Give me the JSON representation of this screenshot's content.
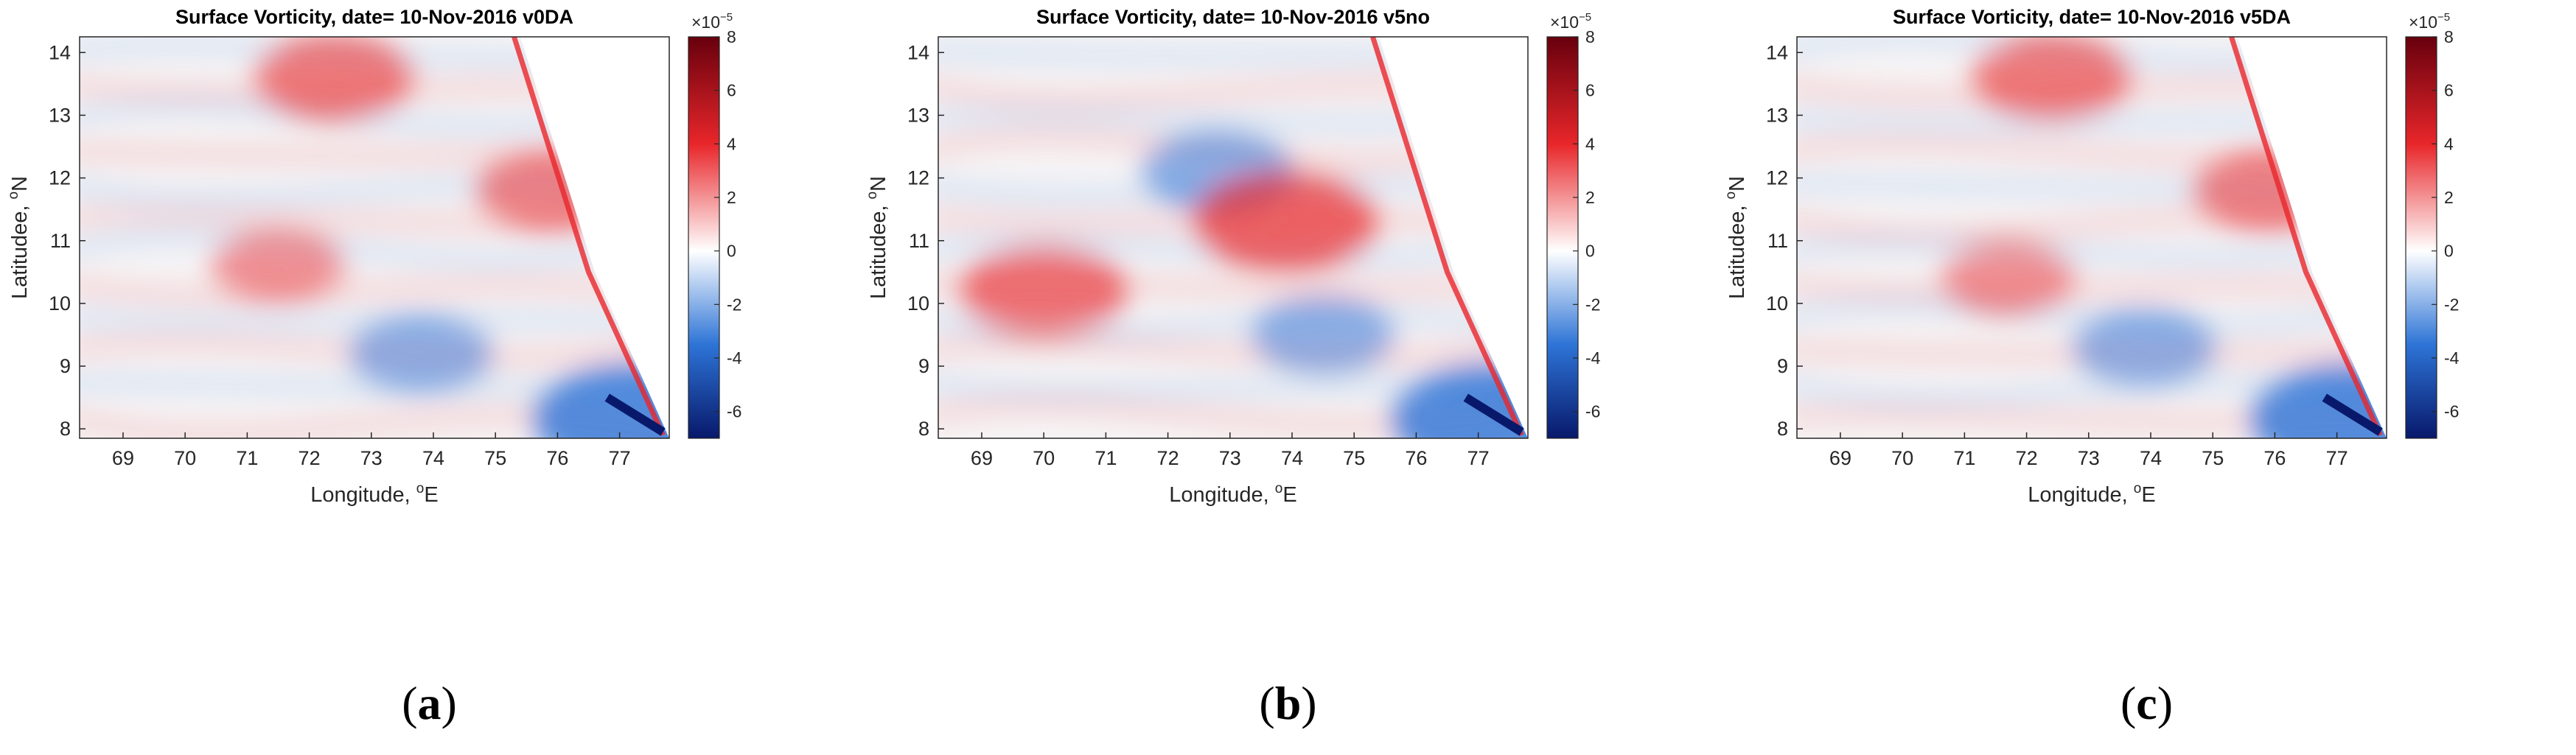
{
  "figure": {
    "panels": [
      {
        "label": "a",
        "title": "Surface Vorticity,  date= 10-Nov-2016  v0DA"
      },
      {
        "label": "b",
        "title": "Surface Vorticity,  date= 10-Nov-2016  v5no"
      },
      {
        "label": "c",
        "title": "Surface Vorticity,  date= 10-Nov-2016  v5DA"
      }
    ]
  },
  "colors": {
    "positive_max": "#67000d",
    "positive": "#e8262a",
    "zero": "#ffffff",
    "negative": "#2d74d6",
    "negative_max": "#08196b",
    "axis": "#262626"
  },
  "chart_data": [
    {
      "type": "heatmap",
      "title": "Surface Vorticity,  date= 10-Nov-2016  v0DA",
      "xlabel": "Longitude, oE",
      "ylabel": "Latitudee, oN",
      "xlim": [
        68.3,
        77.8
      ],
      "ylim": [
        7.85,
        14.25
      ],
      "xticks": [
        69,
        70,
        71,
        72,
        73,
        74,
        75,
        76,
        77
      ],
      "yticks": [
        8,
        9,
        10,
        11,
        12,
        13,
        14
      ],
      "colorbar": {
        "scale_label": "×10−5",
        "clim": [
          -7,
          8
        ],
        "ticks": [
          -6,
          -4,
          -2,
          0,
          2,
          4,
          6,
          8
        ]
      },
      "features": [
        {
          "kind": "positive",
          "value": 3.5,
          "lon": 72.4,
          "lat": 13.6
        },
        {
          "kind": "positive",
          "value": 2.0,
          "lon": 71.5,
          "lat": 10.6
        },
        {
          "kind": "negative",
          "value": -2.5,
          "lon": 73.8,
          "lat": 9.2
        },
        {
          "kind": "positive",
          "value": 3.0,
          "lon": 75.9,
          "lat": 11.8
        },
        {
          "kind": "negative",
          "value": -6.5,
          "lon": 77.3,
          "lat": 8.15
        }
      ]
    },
    {
      "type": "heatmap",
      "title": "Surface Vorticity,  date= 10-Nov-2016  v5no",
      "xlabel": "Longitude, oE",
      "ylabel": "Latitudee, oN",
      "xlim": [
        68.3,
        77.8
      ],
      "ylim": [
        7.85,
        14.25
      ],
      "xticks": [
        69,
        70,
        71,
        72,
        73,
        74,
        75,
        76,
        77
      ],
      "yticks": [
        8,
        9,
        10,
        11,
        12,
        13,
        14
      ],
      "colorbar": {
        "scale_label": "×10−5",
        "clim": [
          -7,
          8
        ],
        "ticks": [
          -6,
          -4,
          -2,
          0,
          2,
          4,
          6,
          8
        ]
      },
      "features": [
        {
          "kind": "positive",
          "value": 4.0,
          "lon": 70.0,
          "lat": 10.2
        },
        {
          "kind": "negative",
          "value": -3.0,
          "lon": 72.8,
          "lat": 12.1
        },
        {
          "kind": "positive",
          "value": 5.0,
          "lon": 73.9,
          "lat": 11.3
        },
        {
          "kind": "negative",
          "value": -2.5,
          "lon": 74.5,
          "lat": 9.5
        },
        {
          "kind": "negative",
          "value": -6.5,
          "lon": 77.3,
          "lat": 8.15
        }
      ]
    },
    {
      "type": "heatmap",
      "title": "Surface Vorticity,  date= 10-Nov-2016  v5DA",
      "xlabel": "Longitude, oE",
      "ylabel": "Latitudee, oN",
      "xlim": [
        68.3,
        77.8
      ],
      "ylim": [
        7.85,
        14.25
      ],
      "xticks": [
        69,
        70,
        71,
        72,
        73,
        74,
        75,
        76,
        77
      ],
      "yticks": [
        8,
        9,
        10,
        11,
        12,
        13,
        14
      ],
      "colorbar": {
        "scale_label": "×10−5",
        "clim": [
          -7,
          8
        ],
        "ticks": [
          -6,
          -4,
          -2,
          0,
          2,
          4,
          6,
          8
        ]
      },
      "features": [
        {
          "kind": "positive",
          "value": 3.5,
          "lon": 72.4,
          "lat": 13.6
        },
        {
          "kind": "positive",
          "value": 2.0,
          "lon": 71.7,
          "lat": 10.4
        },
        {
          "kind": "negative",
          "value": -2.5,
          "lon": 73.9,
          "lat": 9.3
        },
        {
          "kind": "positive",
          "value": 3.0,
          "lon": 75.9,
          "lat": 11.8
        },
        {
          "kind": "negative",
          "value": -6.5,
          "lon": 77.3,
          "lat": 8.15
        }
      ]
    }
  ]
}
